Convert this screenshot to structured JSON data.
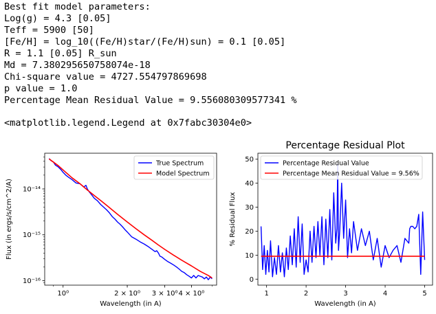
{
  "output": {
    "lines": [
      "Best fit model parameters:",
      "Log(g) = 4.3 [0.05]",
      "Teff = 5900 [50]",
      "[Fe/H] = log_10((Fe/H)star/(Fe/H)sun) = 0.1 [0.05]",
      "R = 1.1 [0.05] R_sun",
      "Md = 7.380295650758074e-18",
      "Chi-square value = 4727.554797869698",
      "p value = 1.0",
      "Percentage Mean Residual Value = 9.556080309577341 %"
    ],
    "repr": "<matplotlib.legend.Legend at 0x7fabc30304e0>"
  },
  "chart_data": [
    {
      "type": "line",
      "title": "",
      "xlabel": "Wavelength (in A)",
      "ylabel": "Flux (in ergs/s/cm^2/A)",
      "xscale": "log",
      "yscale": "log",
      "xlim": [
        0.82,
        5.25
      ],
      "ylim": [
        8e-17,
        6e-14
      ],
      "xticks": [
        {
          "value": 1,
          "label": "10⁰"
        },
        {
          "value": 2,
          "label": "2 × 10⁰"
        },
        {
          "value": 3,
          "label": "3 × 10⁰"
        },
        {
          "value": 4,
          "label": "4 × 10⁰"
        }
      ],
      "yticks": [
        {
          "value": 1e-16,
          "label": "10⁻¹⁶"
        },
        {
          "value": 1e-15,
          "label": "10⁻¹⁵"
        },
        {
          "value": 1e-14,
          "label": "10⁻¹⁴"
        }
      ],
      "legend_position": "top-right",
      "series": [
        {
          "name": "True Spectrum",
          "color": "#0000ff",
          "x": [
            0.86,
            0.88,
            0.9,
            0.92,
            0.95,
            0.98,
            1.0,
            1.03,
            1.06,
            1.1,
            1.15,
            1.2,
            1.25,
            1.28,
            1.3,
            1.33,
            1.36,
            1.4,
            1.45,
            1.5,
            1.55,
            1.6,
            1.65,
            1.7,
            1.75,
            1.8,
            1.85,
            1.9,
            1.95,
            2.0,
            2.1,
            2.2,
            2.3,
            2.4,
            2.5,
            2.6,
            2.7,
            2.75,
            2.8,
            2.85,
            2.9,
            3.0,
            3.1,
            3.2,
            3.3,
            3.4,
            3.5,
            3.6,
            3.7,
            3.8,
            3.9,
            4.0,
            4.1,
            4.2,
            4.3,
            4.4,
            4.5,
            4.6,
            4.7,
            4.8,
            4.9,
            5.0
          ],
          "y": [
            4.6e-14,
            4.1e-14,
            3.9e-14,
            3.3e-14,
            3e-14,
            2.6e-14,
            2.3e-14,
            2e-14,
            1.8e-14,
            1.6e-14,
            1.35e-14,
            1.3e-14,
            1.1e-14,
            1.2e-14,
            1e-14,
            8.5e-15,
            7.5e-15,
            6.3e-15,
            5.5e-15,
            4.6e-15,
            4e-15,
            3.5e-15,
            3e-15,
            2.5e-15,
            2.2e-15,
            1.9e-15,
            1.7e-15,
            1.5e-15,
            1.3e-15,
            1.15e-15,
            9e-16,
            8e-16,
            7e-16,
            6.3e-16,
            5.6e-16,
            4.9e-16,
            4.3e-16,
            4.5e-16,
            4e-16,
            3.4e-16,
            3.3e-16,
            2.9e-16,
            2.6e-16,
            2.4e-16,
            2.2e-16,
            2e-16,
            1.8e-16,
            1.6e-16,
            1.5e-16,
            1.35e-16,
            1.25e-16,
            1.15e-16,
            1.3e-16,
            1.15e-16,
            1.3e-16,
            1.25e-16,
            1.2e-16,
            1.1e-16,
            1.2e-16,
            1.05e-16,
            1.2e-16,
            1.1e-16
          ]
        },
        {
          "name": "Model Spectrum",
          "color": "#ff0000",
          "x": [
            0.86,
            0.95,
            1.0,
            1.1,
            1.2,
            1.3,
            1.4,
            1.5,
            1.6,
            1.8,
            2.0,
            2.2,
            2.4,
            2.6,
            2.8,
            3.0,
            3.3,
            3.6,
            4.0,
            4.4,
            4.8,
            5.0
          ],
          "y": [
            4.5e-14,
            3.2e-14,
            2.6e-14,
            1.75e-14,
            1.3e-14,
            9.5e-15,
            7.2e-15,
            5.6e-15,
            4.4e-15,
            2.8e-15,
            1.9e-15,
            1.35e-15,
            1e-15,
            7.7e-16,
            6e-16,
            4.8e-16,
            3.6e-16,
            2.8e-16,
            2.1e-16,
            1.6e-16,
            1.3e-16,
            1.15e-16
          ]
        }
      ]
    },
    {
      "type": "line",
      "title": "Percentage Residual Plot",
      "xlabel": "Wavelength (in A)",
      "ylabel": "% Residual Flux",
      "xscale": "linear",
      "yscale": "linear",
      "xlim": [
        0.78,
        5.2
      ],
      "ylim": [
        -2.5,
        52.5
      ],
      "xticks": [
        {
          "value": 1,
          "label": "1"
        },
        {
          "value": 2,
          "label": "2"
        },
        {
          "value": 3,
          "label": "3"
        },
        {
          "value": 4,
          "label": "4"
        },
        {
          "value": 5,
          "label": "5"
        }
      ],
      "yticks": [
        {
          "value": 0,
          "label": "0"
        },
        {
          "value": 10,
          "label": "10"
        },
        {
          "value": 20,
          "label": "20"
        },
        {
          "value": 30,
          "label": "30"
        },
        {
          "value": 40,
          "label": "40"
        },
        {
          "value": 50,
          "label": "50"
        }
      ],
      "legend_position": "top-left",
      "series": [
        {
          "name": "Percentage Residual Value",
          "color": "#0000ff",
          "x": [
            0.86,
            0.9,
            0.94,
            0.98,
            1.02,
            1.06,
            1.1,
            1.15,
            1.2,
            1.25,
            1.3,
            1.35,
            1.4,
            1.45,
            1.5,
            1.55,
            1.6,
            1.65,
            1.7,
            1.75,
            1.8,
            1.85,
            1.9,
            1.95,
            2.0,
            2.05,
            2.1,
            2.15,
            2.2,
            2.25,
            2.3,
            2.35,
            2.4,
            2.45,
            2.5,
            2.55,
            2.6,
            2.65,
            2.7,
            2.75,
            2.78,
            2.8,
            2.82,
            2.85,
            2.9,
            2.95,
            3.0,
            3.05,
            3.1,
            3.15,
            3.2,
            3.3,
            3.4,
            3.5,
            3.6,
            3.7,
            3.8,
            3.9,
            4.0,
            4.1,
            4.2,
            4.3,
            4.4,
            4.5,
            4.6,
            4.62,
            4.65,
            4.7,
            4.75,
            4.8,
            4.85,
            4.9,
            4.95,
            5.0
          ],
          "y": [
            22,
            4,
            14,
            2,
            12,
            3,
            16,
            1,
            9,
            2,
            14,
            3,
            11,
            1,
            13,
            4,
            18,
            6,
            21,
            5,
            26,
            7,
            23,
            2,
            8,
            3,
            20,
            7,
            22,
            9,
            24,
            10,
            26,
            6,
            25,
            9,
            29,
            8,
            36,
            15,
            21,
            48,
            12,
            20,
            40,
            17,
            33,
            9,
            21,
            11,
            24,
            12,
            21,
            14,
            20,
            8,
            17,
            5,
            14,
            9,
            12,
            14,
            7,
            17,
            15,
            21,
            22,
            22,
            21,
            22,
            27,
            2,
            28,
            8
          ]
        },
        {
          "name": "Percentage Mean Residual Value = 9.56%",
          "color": "#ff0000",
          "x": [
            0.86,
            5.0
          ],
          "y": [
            9.556,
            9.556
          ]
        }
      ]
    }
  ]
}
